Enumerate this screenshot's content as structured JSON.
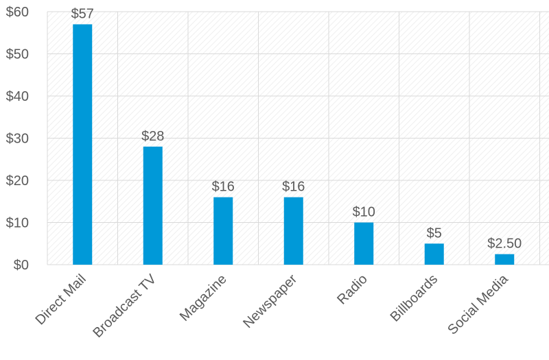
{
  "chart_data": {
    "type": "bar",
    "categories": [
      "Direct Mail",
      "Broadcast TV",
      "Magazine",
      "Newspaper",
      "Radio",
      "Billboards",
      "Social Media"
    ],
    "values": [
      57,
      28,
      16,
      16,
      10,
      5,
      2.5
    ],
    "data_labels": [
      "$57",
      "$28",
      "$16",
      "$16",
      "$10",
      "$5",
      "$2.50"
    ],
    "yticks": [
      0,
      10,
      20,
      30,
      40,
      50,
      60
    ],
    "ytick_labels": [
      "$0",
      "$10",
      "$20",
      "$30",
      "$40",
      "$50",
      "$60"
    ],
    "ylim": [
      0,
      60
    ],
    "grid": true,
    "colors": {
      "bar": "#0099d8",
      "gridline": "#d9d9d9",
      "plot_texture": "#f2f2f2",
      "text": "#595959"
    }
  }
}
